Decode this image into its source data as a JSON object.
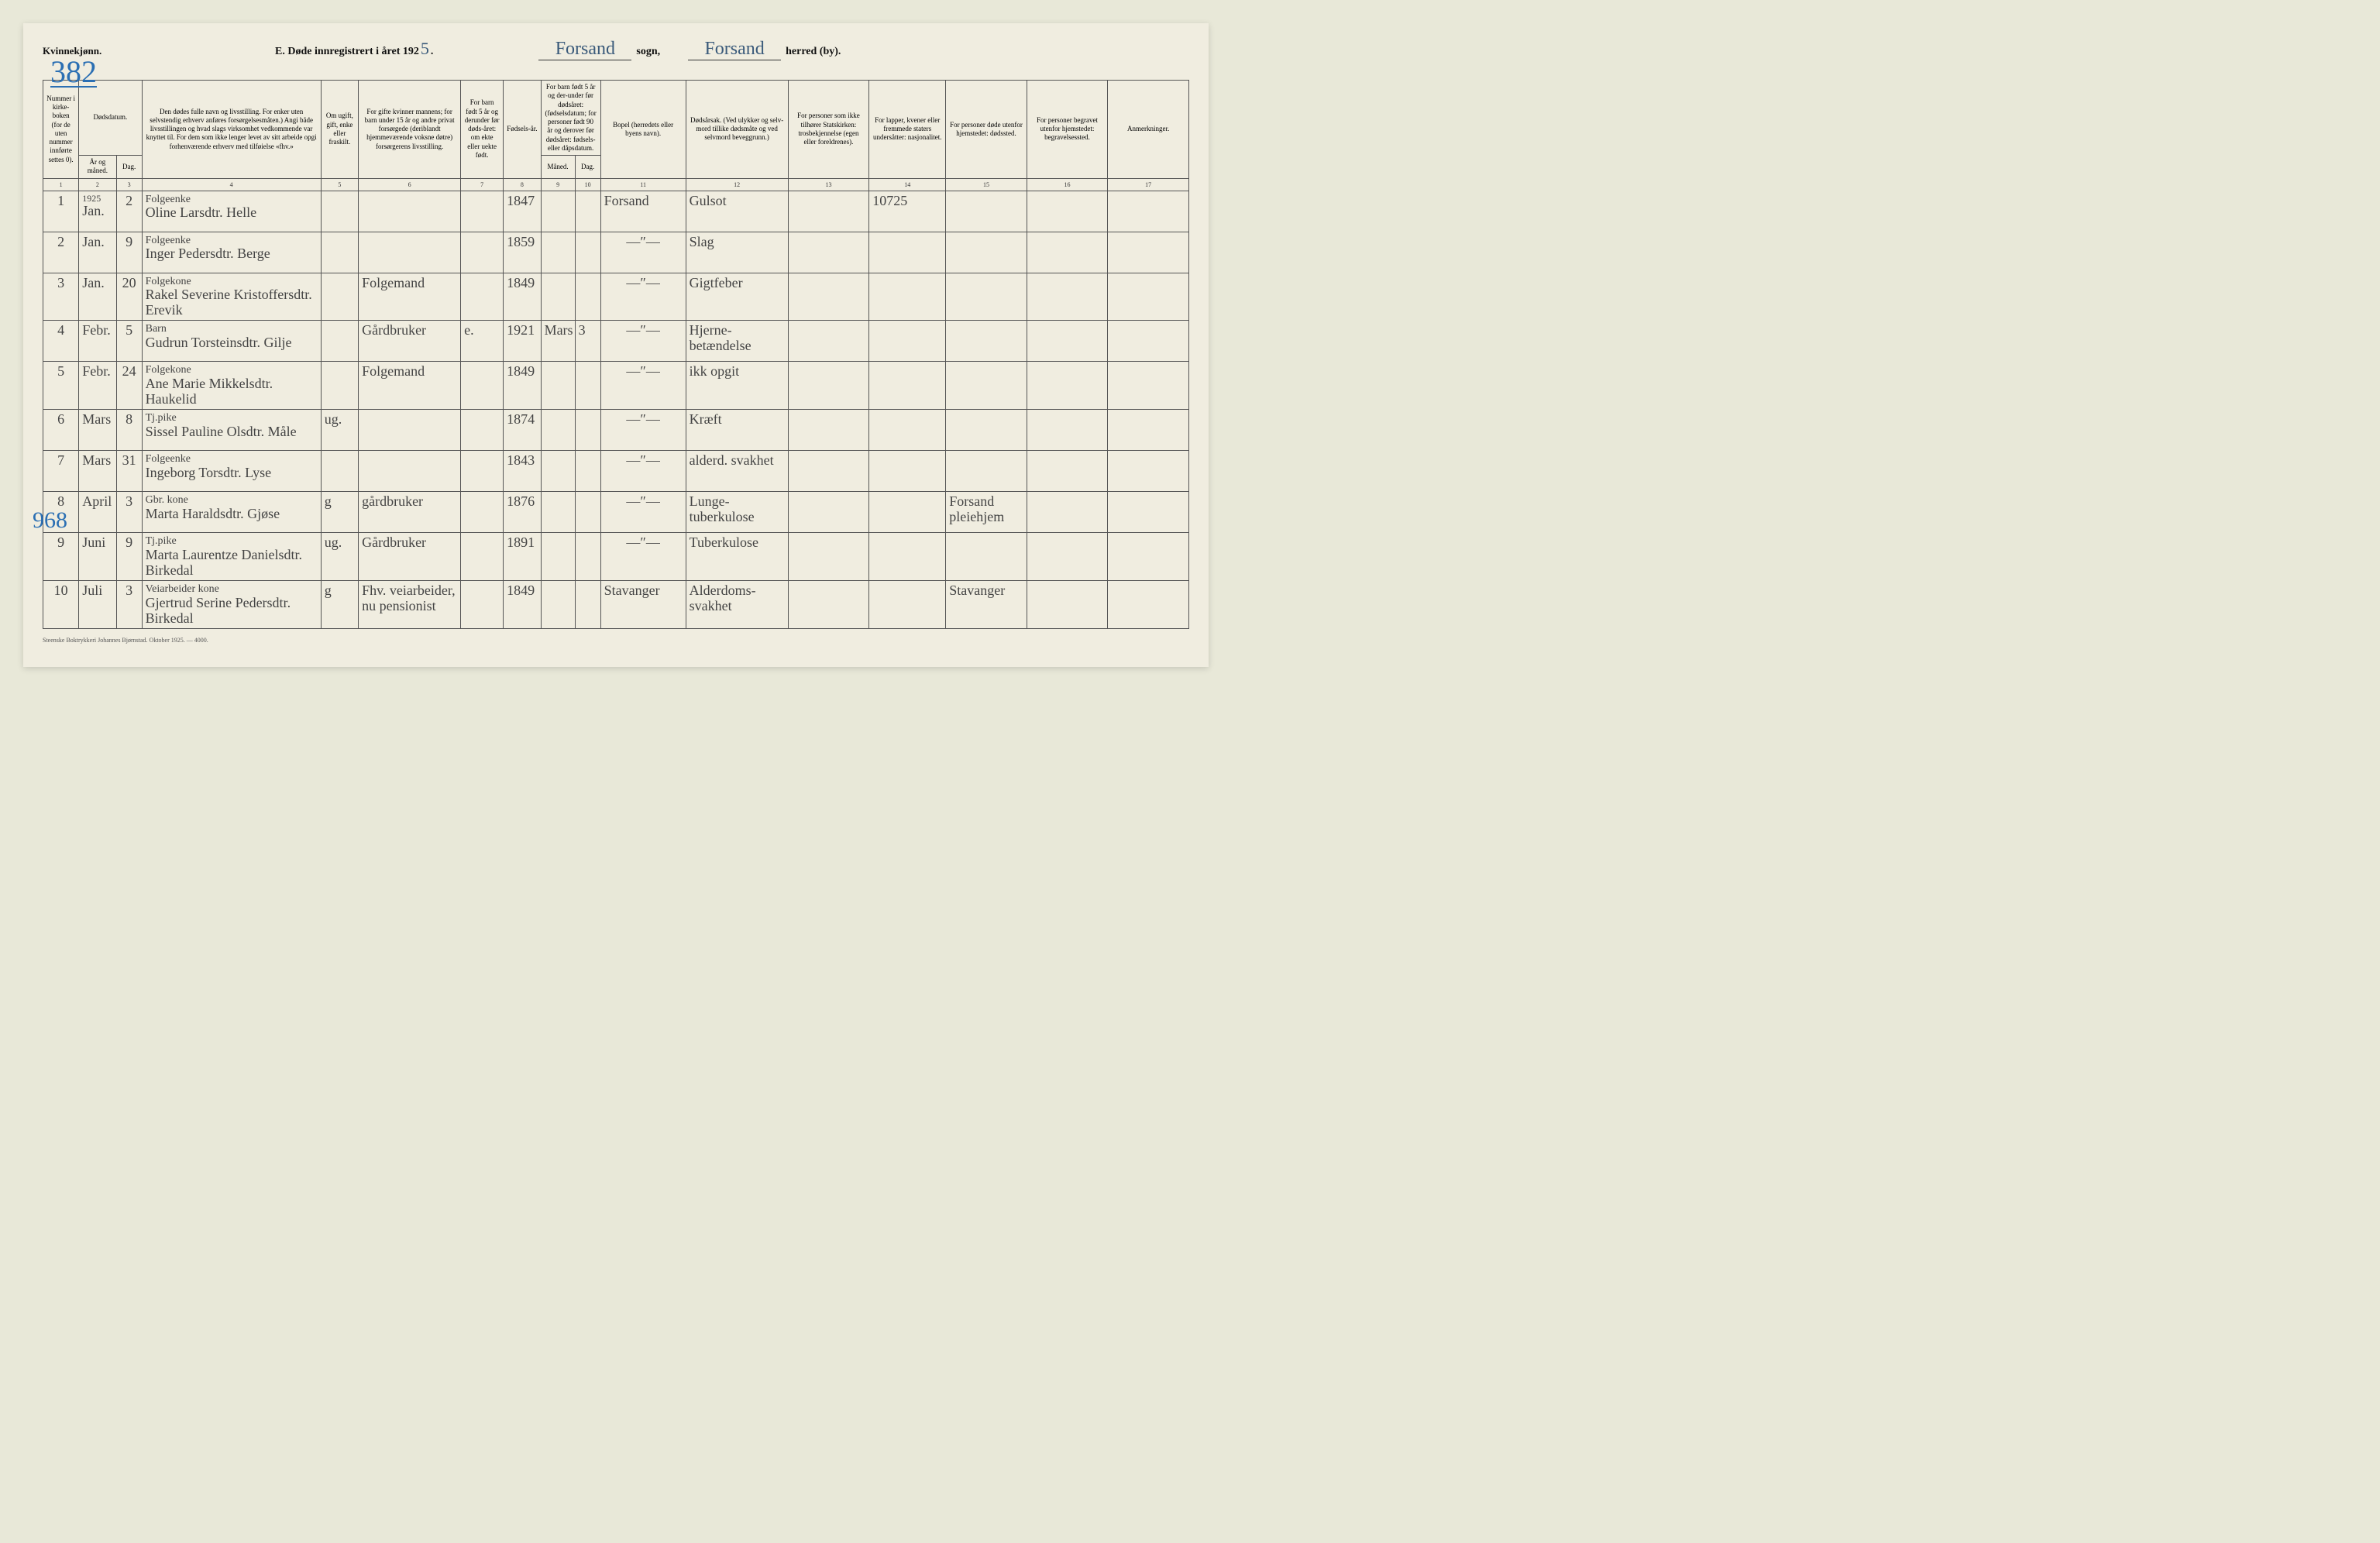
{
  "header": {
    "gender": "Kvinnekjønn.",
    "title_prefix": "E.   Døde innregistrert i året 192",
    "year_digit": "5",
    "title_suffix": ".",
    "sogn_value": "Forsand",
    "sogn_label": "sogn,",
    "herred_value": "Forsand",
    "herred_label": "herred (by).",
    "page_number": "382",
    "side_number": "968"
  },
  "columns": {
    "c1": "Nummer i kirke-boken (for de uten nummer innførte settes 0).",
    "c2a": "Dødsdatum.",
    "c2b": "År og måned.",
    "c3": "Dag.",
    "c4": "Den dødes fulle navn og livsstilling. For enker uten selvstendig erhverv anføres forsørgelsesmåten.) Angi både livsstillingen og hvad slags virksomhet vedkommende var knyttet til. For dem som ikke lenger levet av sitt arbeide opgi forhenværende erhverv med tilføielse «fhv.»",
    "c5": "Om ugift, gift, enke eller fraskilt.",
    "c6": "For gifte kvinner mannens; for barn under 15 år og andre privat forsørgede (deriblandt hjemmeværende voksne døtre) forsørgerens livsstilling.",
    "c7": "For barn født 5 år og derunder før døds-året: om ekte eller uekte født.",
    "c8": "Fødsels-år.",
    "c9": "For barn født 5 år og der-under før dødsåret: (fødselsdatum; for personer født 90 år og derover før dødsåret: fødsels- eller dåpsdatum.",
    "c9a": "Måned.",
    "c9b": "Dag.",
    "c11": "Bopel (herredets eller byens navn).",
    "c12": "Dødsårsak. (Ved ulykker og selv-mord tillike dødsmåte og ved selvmord beveggrunn.)",
    "c13": "For personer som ikke tilhører Statskirken: trosbekjennelse (egen eller foreldrenes).",
    "c14": "For lapper, kvener eller fremmede staters undersåtter: nasjonalitet.",
    "c15": "For personer døde utenfor hjemstedet: dødssted.",
    "c16": "For personer begravet utenfor hjemstedet: begravelsessted.",
    "c17": "Anmerkninger."
  },
  "colnums": [
    "1",
    "2",
    "3",
    "4",
    "5",
    "6",
    "7",
    "8",
    "9",
    "10",
    "11",
    "12",
    "13",
    "14",
    "15",
    "16",
    "17"
  ],
  "year_note": "1925",
  "rows": [
    {
      "num": "1",
      "month": "Jan.",
      "day": "2",
      "occupation": "Folgeenke",
      "name": "Oline Larsdtr. Helle",
      "status": "",
      "provider": "",
      "legit": "",
      "birth_year": "1847",
      "b_month": "",
      "b_day": "",
      "residence": "Forsand",
      "cause": "Gulsot",
      "faith": "",
      "nat": "10725",
      "deathplace": "",
      "burialplace": "",
      "remarks": ""
    },
    {
      "num": "2",
      "month": "Jan.",
      "day": "9",
      "occupation": "Folgeenke",
      "name": "Inger Pedersdtr. Berge",
      "status": "",
      "provider": "",
      "legit": "",
      "birth_year": "1859",
      "b_month": "",
      "b_day": "",
      "residence": "—″—",
      "cause": "Slag",
      "faith": "",
      "nat": "",
      "deathplace": "",
      "burialplace": "",
      "remarks": ""
    },
    {
      "num": "3",
      "month": "Jan.",
      "day": "20",
      "occupation": "Folgekone",
      "name": "Rakel Severine Kristoffersdtr. Erevik",
      "status": "",
      "provider": "Folgemand",
      "legit": "",
      "birth_year": "1849",
      "b_month": "",
      "b_day": "",
      "residence": "—″—",
      "cause": "Gigtfeber",
      "faith": "",
      "nat": "",
      "deathplace": "",
      "burialplace": "",
      "remarks": ""
    },
    {
      "num": "4",
      "month": "Febr.",
      "day": "5",
      "occupation": "Barn",
      "name": "Gudrun Torsteinsdtr. Gilje",
      "status": "",
      "provider": "Gårdbruker",
      "legit": "e.",
      "birth_year": "1921",
      "b_month": "Mars",
      "b_day": "3",
      "residence": "—″—",
      "cause": "Hjerne- betændelse",
      "faith": "",
      "nat": "",
      "deathplace": "",
      "burialplace": "",
      "remarks": ""
    },
    {
      "num": "5",
      "month": "Febr.",
      "day": "24",
      "occupation": "Folgekone",
      "name": "Ane Marie Mikkelsdtr. Haukelid",
      "status": "",
      "provider": "Folgemand",
      "legit": "",
      "birth_year": "1849",
      "b_month": "",
      "b_day": "",
      "residence": "—″—",
      "cause": "ikk opgit",
      "faith": "",
      "nat": "",
      "deathplace": "",
      "burialplace": "",
      "remarks": ""
    },
    {
      "num": "6",
      "month": "Mars",
      "day": "8",
      "occupation": "Tj.pike",
      "name": "Sissel Pauline Olsdtr. Måle",
      "status": "ug.",
      "provider": "",
      "legit": "",
      "birth_year": "1874",
      "b_month": "",
      "b_day": "",
      "residence": "—″—",
      "cause": "Kræft",
      "faith": "",
      "nat": "",
      "deathplace": "",
      "burialplace": "",
      "remarks": ""
    },
    {
      "num": "7",
      "month": "Mars",
      "day": "31",
      "occupation": "Folgeenke",
      "name": "Ingeborg Torsdtr. Lyse",
      "status": "",
      "provider": "",
      "legit": "",
      "birth_year": "1843",
      "b_month": "",
      "b_day": "",
      "residence": "—″—",
      "cause": "alderd. svakhet",
      "faith": "",
      "nat": "",
      "deathplace": "",
      "burialplace": "",
      "remarks": ""
    },
    {
      "num": "8",
      "month": "April",
      "day": "3",
      "occupation": "Gbr. kone",
      "name": "Marta Haraldsdtr. Gjøse",
      "status": "g",
      "provider": "gårdbruker",
      "legit": "",
      "birth_year": "1876",
      "b_month": "",
      "b_day": "",
      "residence": "—″—",
      "cause": "Lunge- tuberkulose",
      "faith": "",
      "nat": "",
      "deathplace": "Forsand pleiehjem",
      "burialplace": "",
      "remarks": ""
    },
    {
      "num": "9",
      "month": "Juni",
      "day": "9",
      "occupation": "Tj.pike",
      "name": "Marta Laurentze Danielsdtr. Birkedal",
      "status": "ug.",
      "provider": "Gårdbruker",
      "legit": "",
      "birth_year": "1891",
      "b_month": "",
      "b_day": "",
      "residence": "—″—",
      "cause": "Tuberkulose",
      "faith": "",
      "nat": "",
      "deathplace": "",
      "burialplace": "",
      "remarks": ""
    },
    {
      "num": "10",
      "month": "Juli",
      "day": "3",
      "occupation": "Veiarbeider kone",
      "name": "Gjertrud Serine Pedersdtr. Birkedal",
      "status": "g",
      "provider": "Fhv. veiarbeider, nu pensionist",
      "legit": "",
      "birth_year": "1849",
      "b_month": "",
      "b_day": "",
      "residence": "Stavanger",
      "cause": "Alderdoms- svakhet",
      "faith": "",
      "nat": "",
      "deathplace": "Stavanger",
      "burialplace": "",
      "remarks": ""
    }
  ],
  "footer": "Steenske Boktrykkeri Johannes Bjørnstad.  Oktober 1925. — 4000."
}
